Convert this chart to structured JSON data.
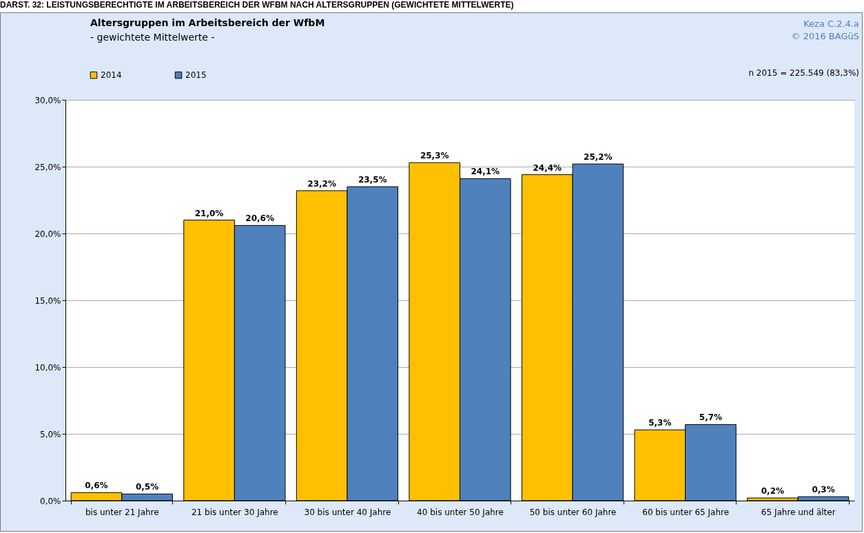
{
  "chart_data": {
    "type": "bar",
    "title": "Altersgruppen im Arbeitsbereich der WfbM",
    "subtitle": "- gewichtete Mittelwerte -",
    "annotations": [
      "DARST. 32: LEISTUNGSBERECHTIGTE IM ARBEITSBEREICH DER WFBM NACH ALTERSGRUPPEN (GEWICHTETE MITTELWERTE)",
      "Keza C.2.4.a",
      "© 2016 BAGüS",
      "n 2015 = 225.549 (83,3%)"
    ],
    "categories": [
      "bis unter 21 Jahre",
      "21 bis unter 30 Jahre",
      "30 bis unter 40 Jahre",
      "40 bis unter 50 Jahre",
      "50 bis unter 60 Jahre",
      "60 bis unter 65 Jahre",
      "65 Jahre und älter"
    ],
    "series": [
      {
        "name": "2014",
        "color": "#ffc000",
        "values": [
          0.6,
          21.0,
          23.2,
          25.3,
          24.4,
          5.3,
          0.2
        ],
        "value_labels": [
          "0,6%",
          "21,0%",
          "23,2%",
          "25,3%",
          "24,4%",
          "5,3%",
          "0,2%"
        ]
      },
      {
        "name": "2015",
        "color": "#4f81bd",
        "values": [
          0.5,
          20.6,
          23.5,
          24.1,
          25.2,
          5.7,
          0.3
        ],
        "value_labels": [
          "0,5%",
          "20,6%",
          "23,5%",
          "24,1%",
          "25,2%",
          "5,7%",
          "0,3%"
        ]
      }
    ],
    "ylim": [
      0,
      30
    ],
    "yticks": [
      {
        "value": 0,
        "label": "0,0%"
      },
      {
        "value": 5,
        "label": "5,0%"
      },
      {
        "value": 10,
        "label": "10,0%"
      },
      {
        "value": 15,
        "label": "15,0%"
      },
      {
        "value": 20,
        "label": "20,0%"
      },
      {
        "value": 25,
        "label": "25,0%"
      },
      {
        "value": 30,
        "label": "30,0%"
      }
    ],
    "grid": "y",
    "legend": "top left"
  }
}
